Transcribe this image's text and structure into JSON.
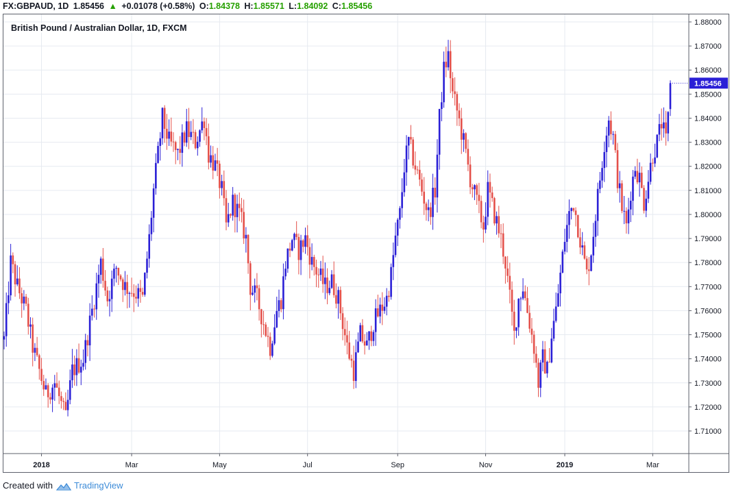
{
  "header": {
    "symbol": "FX:GBPAUD, 1D",
    "last": "1.85456",
    "change_arrow": "▲",
    "change": "+0.01078 (+0.58%)",
    "open_label": "O:",
    "open": "1.84378",
    "high_label": "H:",
    "high": "1.85571",
    "low_label": "L:",
    "low": "1.84092",
    "close_label": "C:",
    "close": "1.85456"
  },
  "chart_title": "British Pound / Australian Dollar, 1D, FXCM",
  "footer": {
    "created_with": "Created with",
    "brand": "TradingView",
    "logo_icon": "tradingview-cloud-icon"
  },
  "colors": {
    "up": "#2a1fd6",
    "down": "#e4504a",
    "grid": "#e6eaf0",
    "axis": "#5d606b",
    "price_tag": "#2a1fd6",
    "header_up": "#26a000"
  },
  "chart_data": {
    "type": "candlestick",
    "title": "British Pound / Australian Dollar, 1D, FXCM",
    "y_axis_ticks": [
      "1.88000",
      "1.87000",
      "1.86000",
      "1.85000",
      "1.84000",
      "1.83000",
      "1.82000",
      "1.81000",
      "1.80000",
      "1.79000",
      "1.78000",
      "1.77000",
      "1.76000",
      "1.75000",
      "1.74000",
      "1.73000",
      "1.72000",
      "1.71000"
    ],
    "ylim": [
      1.7,
      1.882
    ],
    "x_axis_ticks": [
      {
        "label": "2018",
        "bold": true,
        "index": 17
      },
      {
        "label": "Mar",
        "bold": false,
        "index": 58
      },
      {
        "label": "May",
        "bold": false,
        "index": 98
      },
      {
        "label": "Jul",
        "bold": false,
        "index": 138
      },
      {
        "label": "Sep",
        "bold": false,
        "index": 179
      },
      {
        "label": "Nov",
        "bold": false,
        "index": 219
      },
      {
        "label": "2019",
        "bold": true,
        "index": 255
      },
      {
        "label": "Mar",
        "bold": false,
        "index": 295
      }
    ],
    "last_price": "1.85456",
    "x_start": "Dec 2017",
    "x_end": "Feb 28, 2019",
    "anchors": [
      [
        0,
        1.748
      ],
      [
        3,
        1.78
      ],
      [
        6,
        1.77
      ],
      [
        10,
        1.76
      ],
      [
        13,
        1.745
      ],
      [
        16,
        1.735
      ],
      [
        19,
        1.725
      ],
      [
        23,
        1.73
      ],
      [
        28,
        1.715
      ],
      [
        31,
        1.735
      ],
      [
        36,
        1.74
      ],
      [
        40,
        1.76
      ],
      [
        44,
        1.78
      ],
      [
        47,
        1.765
      ],
      [
        51,
        1.778
      ],
      [
        55,
        1.77
      ],
      [
        59,
        1.768
      ],
      [
        63,
        1.765
      ],
      [
        66,
        1.79
      ],
      [
        68,
        1.81
      ],
      [
        70,
        1.825
      ],
      [
        72,
        1.84
      ],
      [
        75,
        1.83
      ],
      [
        79,
        1.825
      ],
      [
        83,
        1.835
      ],
      [
        87,
        1.83
      ],
      [
        91,
        1.84
      ],
      [
        93,
        1.825
      ],
      [
        96,
        1.82
      ],
      [
        99,
        1.81
      ],
      [
        101,
        1.795
      ],
      [
        104,
        1.805
      ],
      [
        107,
        1.8
      ],
      [
        110,
        1.79
      ],
      [
        112,
        1.77
      ],
      [
        115,
        1.765
      ],
      [
        118,
        1.755
      ],
      [
        121,
        1.745
      ],
      [
        124,
        1.76
      ],
      [
        126,
        1.765
      ],
      [
        128,
        1.78
      ],
      [
        131,
        1.79
      ],
      [
        134,
        1.785
      ],
      [
        137,
        1.79
      ],
      [
        140,
        1.78
      ],
      [
        143,
        1.775
      ],
      [
        146,
        1.77
      ],
      [
        149,
        1.772
      ],
      [
        152,
        1.765
      ],
      [
        154,
        1.755
      ],
      [
        156,
        1.745
      ],
      [
        159,
        1.735
      ],
      [
        162,
        1.75
      ],
      [
        165,
        1.745
      ],
      [
        168,
        1.755
      ],
      [
        171,
        1.76
      ],
      [
        174,
        1.765
      ],
      [
        176,
        1.775
      ],
      [
        178,
        1.79
      ],
      [
        180,
        1.8
      ],
      [
        182,
        1.82
      ],
      [
        184,
        1.83
      ],
      [
        187,
        1.82
      ],
      [
        190,
        1.81
      ],
      [
        193,
        1.8
      ],
      [
        196,
        1.81
      ],
      [
        198,
        1.84
      ],
      [
        200,
        1.86
      ],
      [
        202,
        1.866
      ],
      [
        204,
        1.85
      ],
      [
        206,
        1.843
      ],
      [
        209,
        1.83
      ],
      [
        212,
        1.815
      ],
      [
        215,
        1.805
      ],
      [
        218,
        1.795
      ],
      [
        220,
        1.81
      ],
      [
        223,
        1.8
      ],
      [
        226,
        1.79
      ],
      [
        228,
        1.78
      ],
      [
        230,
        1.765
      ],
      [
        232,
        1.75
      ],
      [
        234,
        1.765
      ],
      [
        236,
        1.77
      ],
      [
        238,
        1.76
      ],
      [
        241,
        1.745
      ],
      [
        243,
        1.73
      ],
      [
        245,
        1.74
      ],
      [
        247,
        1.735
      ],
      [
        249,
        1.75
      ],
      [
        251,
        1.76
      ],
      [
        253,
        1.775
      ],
      [
        255,
        1.79
      ],
      [
        257,
        1.8
      ],
      [
        259,
        1.805
      ],
      [
        261,
        1.795
      ],
      [
        263,
        1.785
      ],
      [
        265,
        1.775
      ],
      [
        267,
        1.785
      ],
      [
        269,
        1.8
      ],
      [
        271,
        1.815
      ],
      [
        273,
        1.83
      ],
      [
        275,
        1.84
      ],
      [
        277,
        1.832
      ],
      [
        279,
        1.815
      ],
      [
        281,
        1.803
      ],
      [
        283,
        1.795
      ],
      [
        285,
        1.81
      ],
      [
        287,
        1.82
      ],
      [
        289,
        1.815
      ],
      [
        291,
        1.805
      ],
      [
        293,
        1.815
      ],
      [
        295,
        1.825
      ],
      [
        297,
        1.83
      ],
      [
        299,
        1.838
      ],
      [
        301,
        1.83
      ],
      [
        302,
        1.84
      ],
      [
        303,
        1.8546
      ]
    ]
  }
}
